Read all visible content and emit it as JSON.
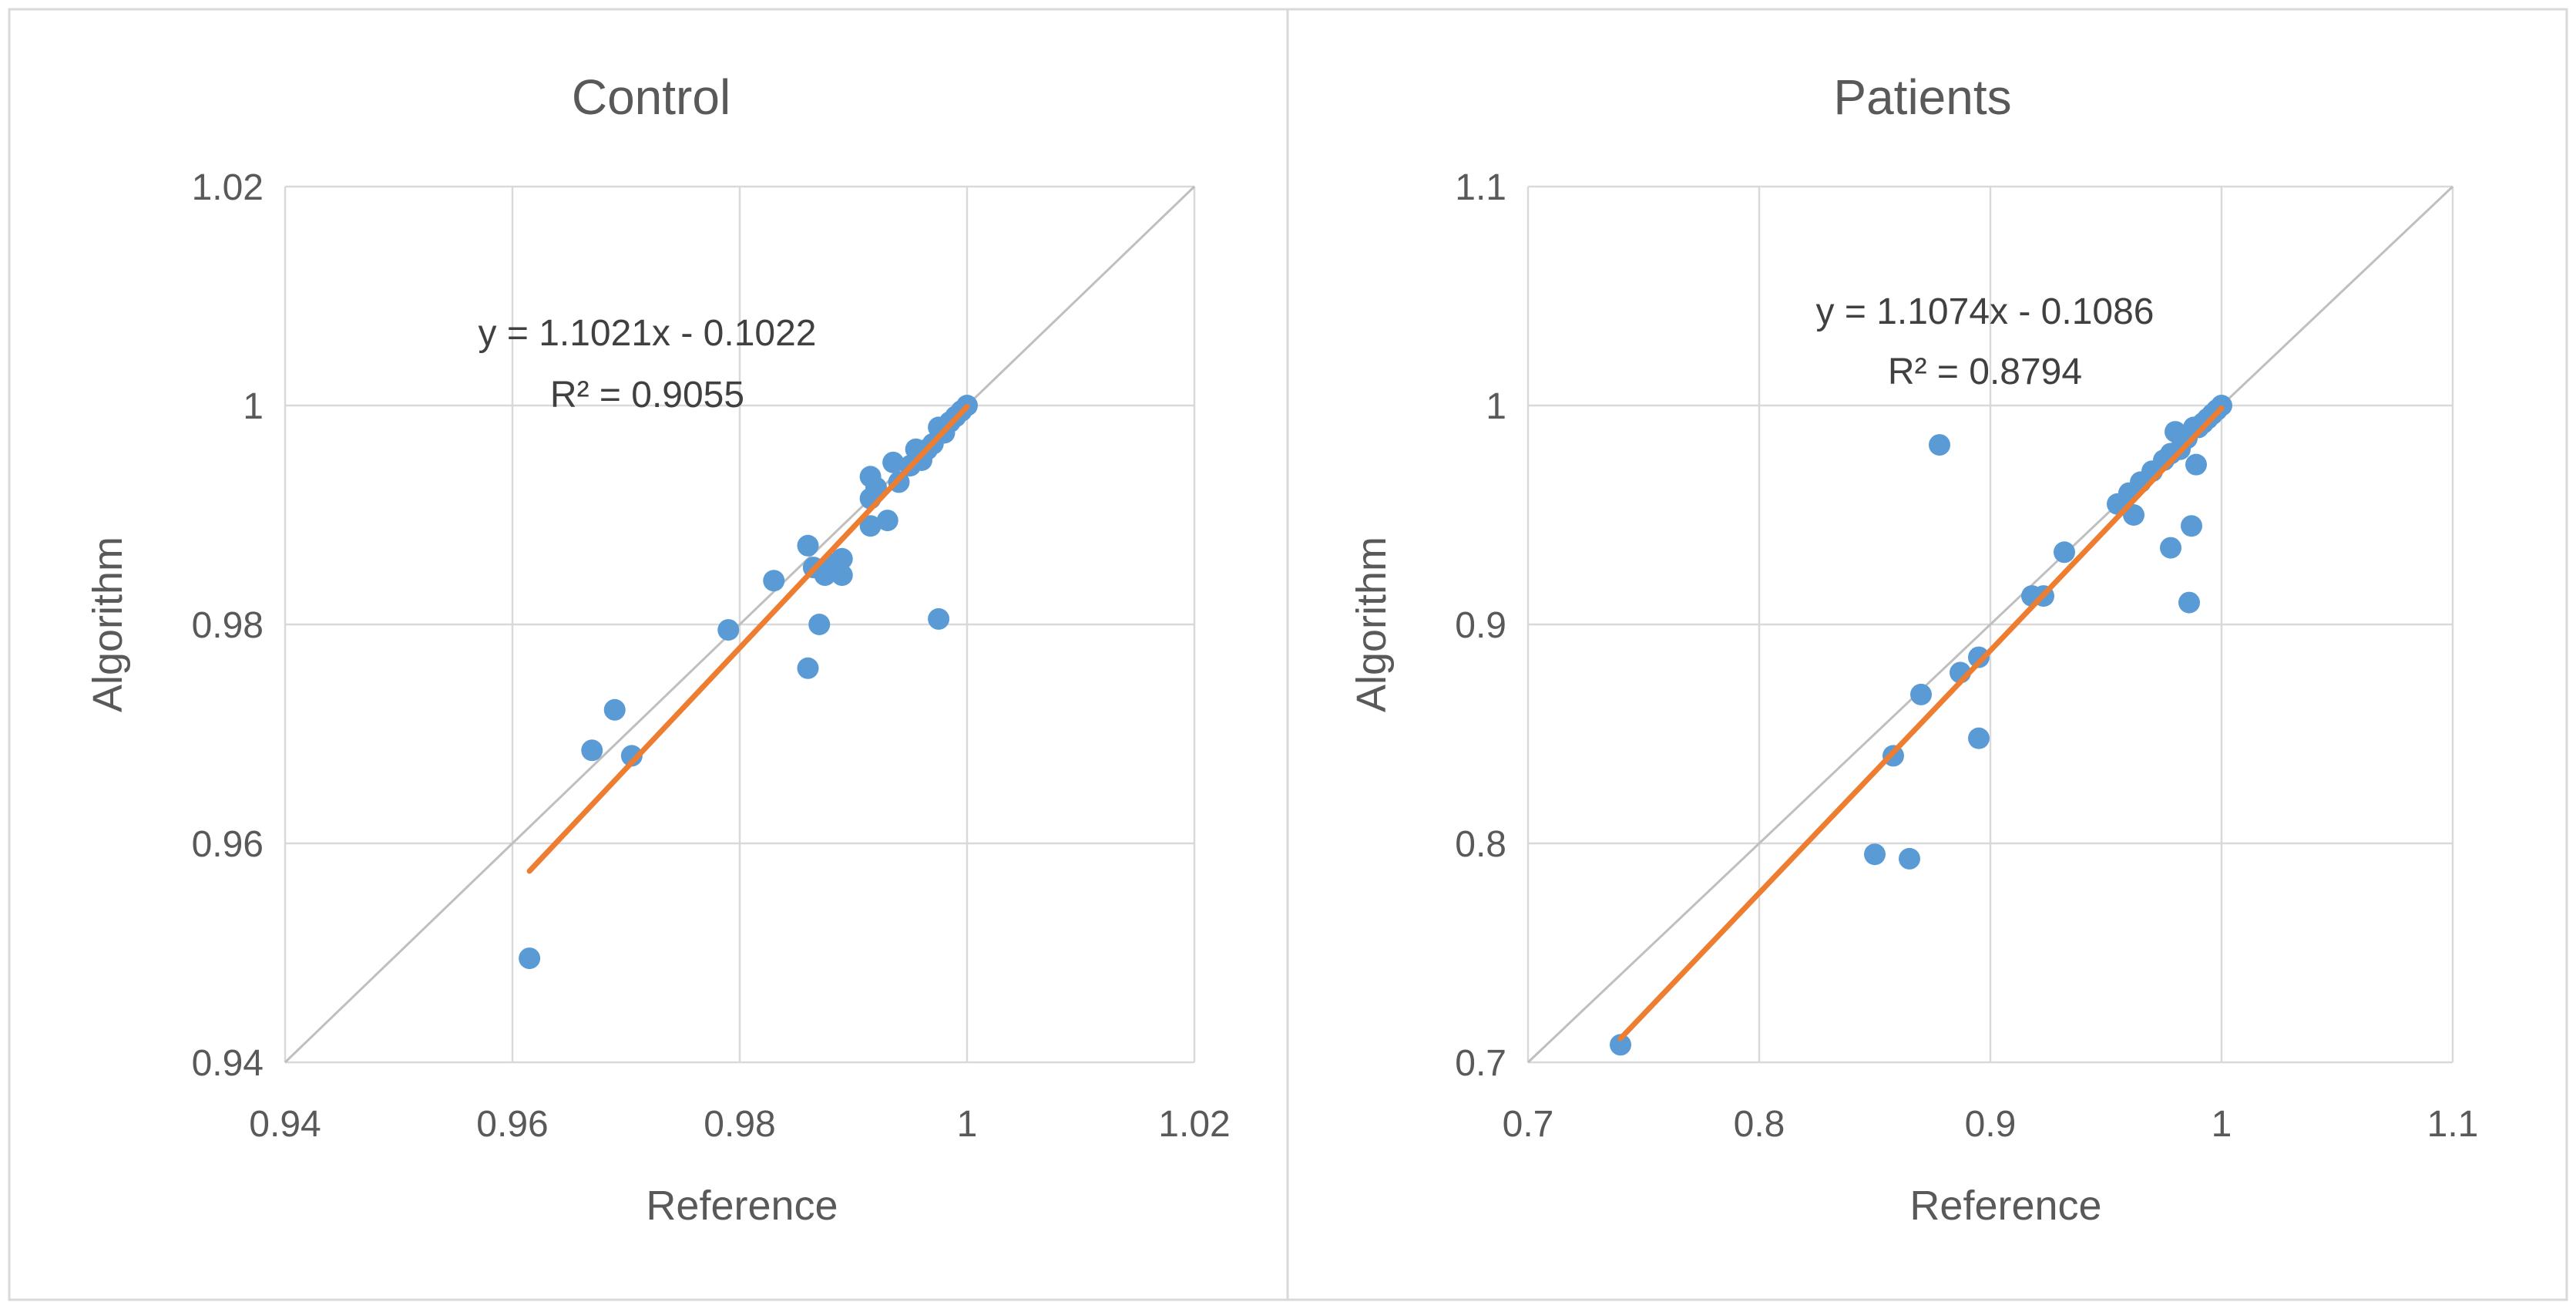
{
  "chart_data": [
    {
      "type": "scatter",
      "title": "Control",
      "xlabel": "Reference",
      "ylabel": "Algorithm",
      "xlim": [
        0.94,
        1.02
      ],
      "ylim": [
        0.94,
        1.02
      ],
      "xticks": [
        0.94,
        0.96,
        0.98,
        1,
        1.02
      ],
      "yticks": [
        0.94,
        0.96,
        0.98,
        1,
        1.02
      ],
      "xtick_labels": [
        "0.94",
        "0.96",
        "0.98",
        "1",
        "1.02"
      ],
      "ytick_labels": [
        "0.94",
        "0.96",
        "0.98",
        "1",
        "1.02"
      ],
      "grid": true,
      "identity_line": true,
      "trendline": {
        "slope": 1.1021,
        "intercept": -0.1022,
        "x_range": [
          0.9615,
          1.0
        ]
      },
      "equation_label": "y = 1.1021x - 0.1022",
      "r2_label": "R² = 0.9055",
      "points": [
        [
          0.9615,
          0.9495
        ],
        [
          0.967,
          0.9685
        ],
        [
          0.969,
          0.9722
        ],
        [
          0.9705,
          0.968
        ],
        [
          0.979,
          0.9795
        ],
        [
          0.983,
          0.984
        ],
        [
          0.986,
          0.976
        ],
        [
          0.986,
          0.9872
        ],
        [
          0.9865,
          0.9852
        ],
        [
          0.987,
          0.98
        ],
        [
          0.9875,
          0.9845
        ],
        [
          0.988,
          0.9855
        ],
        [
          0.989,
          0.986
        ],
        [
          0.989,
          0.9845
        ],
        [
          0.9915,
          0.9935
        ],
        [
          0.9915,
          0.9915
        ],
        [
          0.9915,
          0.989
        ],
        [
          0.992,
          0.9925
        ],
        [
          0.993,
          0.9895
        ],
        [
          0.9935,
          0.9948
        ],
        [
          0.994,
          0.993
        ],
        [
          0.995,
          0.9945
        ],
        [
          0.9955,
          0.996
        ],
        [
          0.996,
          0.995
        ],
        [
          0.9965,
          0.996
        ],
        [
          0.997,
          0.9965
        ],
        [
          0.9975,
          0.9805
        ],
        [
          0.9975,
          0.998
        ],
        [
          0.998,
          0.9975
        ],
        [
          0.9985,
          0.9985
        ],
        [
          0.999,
          0.999
        ],
        [
          0.9995,
          0.9995
        ],
        [
          1.0,
          1.0
        ]
      ]
    },
    {
      "type": "scatter",
      "title": "Patients",
      "xlabel": "Reference",
      "ylabel": "Algorithm",
      "xlim": [
        0.7,
        1.1
      ],
      "ylim": [
        0.7,
        1.1
      ],
      "xticks": [
        0.7,
        0.8,
        0.9,
        1,
        1.1
      ],
      "yticks": [
        0.7,
        0.8,
        0.9,
        1,
        1.1
      ],
      "xtick_labels": [
        "0.7",
        "0.8",
        "0.9",
        "1",
        "1.1"
      ],
      "ytick_labels": [
        "0.7",
        "0.8",
        "0.9",
        "1",
        "1.1"
      ],
      "grid": true,
      "identity_line": true,
      "trendline": {
        "slope": 1.1074,
        "intercept": -0.1086,
        "x_range": [
          0.74,
          1.0
        ]
      },
      "equation_label": "y = 1.1074x - 0.1086",
      "r2_label": "R² = 0.8794",
      "points": [
        [
          0.74,
          0.708
        ],
        [
          0.85,
          0.795
        ],
        [
          0.858,
          0.84
        ],
        [
          0.865,
          0.793
        ],
        [
          0.87,
          0.868
        ],
        [
          0.878,
          0.982
        ],
        [
          0.887,
          0.878
        ],
        [
          0.895,
          0.885
        ],
        [
          0.895,
          0.848
        ],
        [
          0.918,
          0.913
        ],
        [
          0.923,
          0.913
        ],
        [
          0.932,
          0.933
        ],
        [
          0.955,
          0.955
        ],
        [
          0.96,
          0.96
        ],
        [
          0.962,
          0.95
        ],
        [
          0.965,
          0.965
        ],
        [
          0.97,
          0.97
        ],
        [
          0.975,
          0.975
        ],
        [
          0.978,
          0.935
        ],
        [
          0.978,
          0.978
        ],
        [
          0.98,
          0.988
        ],
        [
          0.982,
          0.98
        ],
        [
          0.985,
          0.985
        ],
        [
          0.986,
          0.91
        ],
        [
          0.987,
          0.945
        ],
        [
          0.988,
          0.99
        ],
        [
          0.989,
          0.973
        ],
        [
          0.99,
          0.99
        ],
        [
          0.992,
          0.992
        ],
        [
          0.994,
          0.994
        ],
        [
          0.996,
          0.996
        ],
        [
          0.998,
          0.998
        ],
        [
          1.0,
          1.0
        ]
      ]
    }
  ]
}
